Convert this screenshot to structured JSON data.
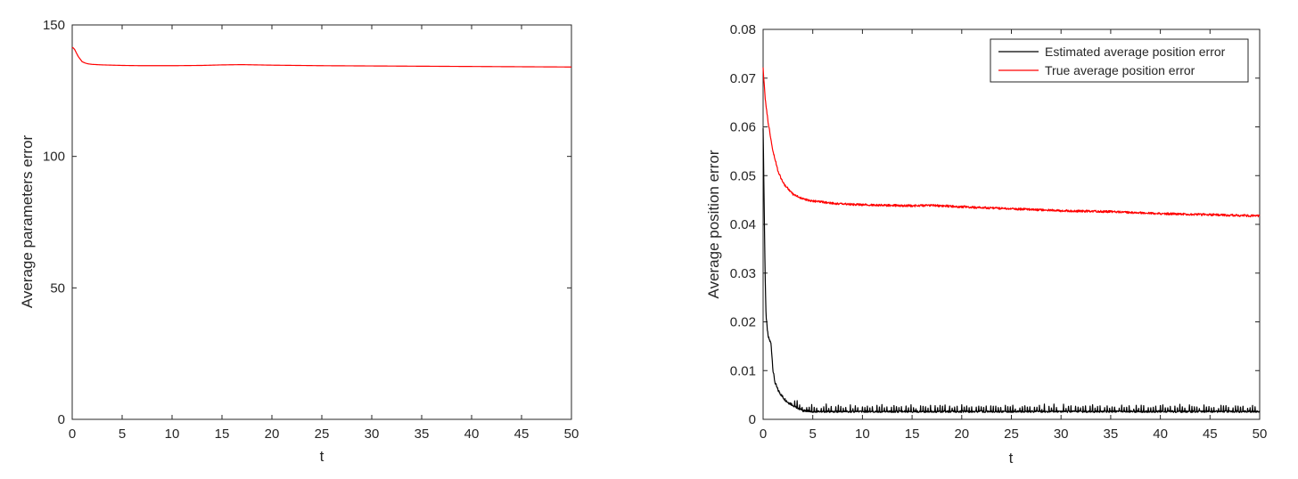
{
  "chart_data": [
    {
      "type": "line",
      "xlabel": "t",
      "ylabel": "Average parameters error",
      "xlim": [
        0,
        50
      ],
      "ylim": [
        0,
        150
      ],
      "xticks": [
        0,
        5,
        10,
        15,
        20,
        25,
        30,
        35,
        40,
        45,
        50
      ],
      "yticks": [
        0,
        50,
        100,
        150
      ],
      "xtick_labels": [
        "0",
        "5",
        "10",
        "15",
        "20",
        "25",
        "30",
        "35",
        "40",
        "45",
        "50"
      ],
      "ytick_labels": [
        "0",
        "50",
        "100",
        "150"
      ],
      "grid": false,
      "series": [
        {
          "color": "#ff0000",
          "x": [
            0,
            0.2,
            0.4,
            0.6,
            0.8,
            1.0,
            1.3,
            1.6,
            2,
            3,
            5,
            7,
            10,
            13,
            15,
            17,
            20,
            25,
            30,
            35,
            40,
            45,
            50
          ],
          "y": [
            141.5,
            141,
            139.5,
            138,
            137,
            136,
            135.5,
            135.2,
            135,
            134.8,
            134.6,
            134.5,
            134.5,
            134.6,
            134.8,
            134.9,
            134.7,
            134.5,
            134.4,
            134.3,
            134.2,
            134.1,
            134.0
          ]
        }
      ]
    },
    {
      "type": "line",
      "xlabel": "t",
      "ylabel": "Average position error",
      "xlim": [
        0,
        50
      ],
      "ylim": [
        0,
        0.08
      ],
      "xticks": [
        0,
        5,
        10,
        15,
        20,
        25,
        30,
        35,
        40,
        45,
        50
      ],
      "yticks": [
        0,
        0.01,
        0.02,
        0.03,
        0.04,
        0.05,
        0.06,
        0.07,
        0.08
      ],
      "xtick_labels": [
        "0",
        "5",
        "10",
        "15",
        "20",
        "25",
        "30",
        "35",
        "40",
        "45",
        "50"
      ],
      "ytick_labels": [
        "0",
        "0.01",
        "0.02",
        "0.03",
        "0.04",
        "0.05",
        "0.06",
        "0.07",
        "0.08"
      ],
      "grid": false,
      "legend": {
        "position": "top-right"
      },
      "series": [
        {
          "name": "Estimated average position error",
          "color": "#000000",
          "x": [
            0,
            0.1,
            0.2,
            0.3,
            0.5,
            0.8,
            1.0,
            1.2,
            1.5,
            2.0,
            2.5,
            3.0,
            4.0,
            5.0,
            10,
            20,
            30,
            40,
            50
          ],
          "y": [
            0.06,
            0.045,
            0.03,
            0.021,
            0.017,
            0.0155,
            0.01,
            0.0075,
            0.006,
            0.0045,
            0.0035,
            0.003,
            0.002,
            0.0018,
            0.0018,
            0.0018,
            0.0018,
            0.0018,
            0.0018
          ],
          "oscillation_amplitude": 0.001
        },
        {
          "name": "True average position error",
          "color": "#ff0000",
          "x": [
            0,
            0.2,
            0.5,
            1.0,
            1.5,
            2.0,
            3.0,
            4.0,
            5.0,
            7.0,
            10,
            13,
            15,
            17,
            20,
            25,
            30,
            35,
            40,
            45,
            50
          ],
          "y": [
            0.072,
            0.066,
            0.061,
            0.055,
            0.051,
            0.0485,
            0.0462,
            0.0452,
            0.0448,
            0.0443,
            0.044,
            0.0439,
            0.0438,
            0.0439,
            0.0436,
            0.0432,
            0.0428,
            0.0426,
            0.0422,
            0.042,
            0.0417
          ]
        }
      ]
    }
  ]
}
